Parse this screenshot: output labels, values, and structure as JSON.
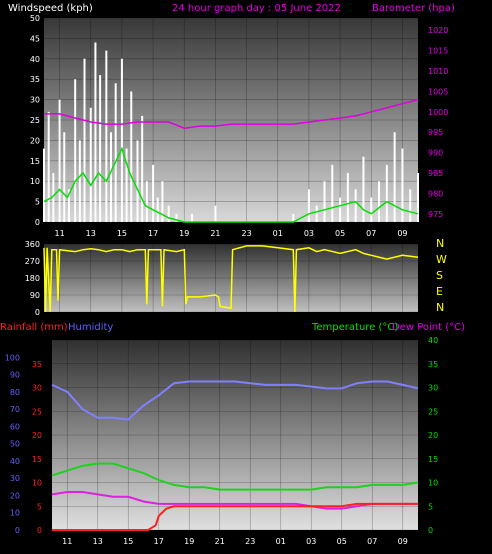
{
  "title": "24 hour graph day : 05 June 2022",
  "x_ticks": [
    "11",
    "13",
    "15",
    "17",
    "19",
    "21",
    "23",
    "01",
    "03",
    "05",
    "07",
    "09"
  ],
  "colors": {
    "wind_gust": "#ffffff",
    "wind_avg": "#00e000",
    "barometer": "#e000e0",
    "direction": "#ffff00",
    "rain": "#ff2020",
    "humidity": "#8080ff",
    "temperature": "#20d020",
    "dewpoint": "#e020e0",
    "rain_label": "#ff2020",
    "humidity_label": "#6060ff",
    "temp_label": "#00e000",
    "dew_label": "#e000e0"
  },
  "chart_data": [
    {
      "type": "line",
      "ylabel": "Windspeed (kph)",
      "ylabel_right": "Barometer (hpa)",
      "y_ticks": [
        0,
        5,
        10,
        15,
        20,
        25,
        30,
        35,
        40,
        45,
        50
      ],
      "y2_ticks": [
        975,
        980,
        985,
        990,
        995,
        1000,
        1005,
        1010,
        1015,
        1020
      ],
      "ylim": [
        0,
        50
      ],
      "y2lim": [
        973,
        1023
      ],
      "x_range": [
        0,
        24
      ],
      "series": [
        {
          "key": "gust",
          "values": [
            [
              0,
              18
            ],
            [
              0.3,
              27
            ],
            [
              0.6,
              12
            ],
            [
              1,
              30
            ],
            [
              1.3,
              22
            ],
            [
              1.6,
              8
            ],
            [
              2,
              35
            ],
            [
              2.3,
              20
            ],
            [
              2.6,
              40
            ],
            [
              3,
              28
            ],
            [
              3.3,
              44
            ],
            [
              3.6,
              36
            ],
            [
              4,
              42
            ],
            [
              4.3,
              22
            ],
            [
              4.6,
              34
            ],
            [
              5,
              40
            ],
            [
              5.3,
              18
            ],
            [
              5.6,
              32
            ],
            [
              6,
              20
            ],
            [
              6.3,
              26
            ],
            [
              6.6,
              10
            ],
            [
              7,
              14
            ],
            [
              7.3,
              6
            ],
            [
              7.6,
              10
            ],
            [
              8,
              4
            ],
            [
              8.5,
              2
            ],
            [
              9,
              0
            ],
            [
              9.5,
              2
            ],
            [
              10,
              0
            ],
            [
              11,
              4
            ],
            [
              12,
              0
            ],
            [
              13,
              0
            ],
            [
              14,
              0
            ],
            [
              15,
              0
            ],
            [
              16,
              2
            ],
            [
              17,
              8
            ],
            [
              17.5,
              4
            ],
            [
              18,
              10
            ],
            [
              18.5,
              14
            ],
            [
              19,
              6
            ],
            [
              19.5,
              12
            ],
            [
              20,
              8
            ],
            [
              20.5,
              16
            ],
            [
              21,
              6
            ],
            [
              21.5,
              10
            ],
            [
              22,
              14
            ],
            [
              22.5,
              22
            ],
            [
              23,
              18
            ],
            [
              23.5,
              8
            ],
            [
              24,
              12
            ]
          ]
        },
        {
          "key": "avg",
          "values": [
            [
              0,
              5
            ],
            [
              0.5,
              6
            ],
            [
              1,
              8
            ],
            [
              1.5,
              6
            ],
            [
              2,
              10
            ],
            [
              2.5,
              12
            ],
            [
              3,
              9
            ],
            [
              3.5,
              12
            ],
            [
              4,
              10
            ],
            [
              4.5,
              14
            ],
            [
              5,
              18
            ],
            [
              5.5,
              12
            ],
            [
              6,
              8
            ],
            [
              6.5,
              4
            ],
            [
              7,
              3
            ],
            [
              7.5,
              2
            ],
            [
              8,
              1
            ],
            [
              9,
              0
            ],
            [
              10,
              0
            ],
            [
              12,
              0
            ],
            [
              14,
              0
            ],
            [
              16,
              0
            ],
            [
              17,
              2
            ],
            [
              18,
              3
            ],
            [
              19,
              4
            ],
            [
              20,
              5
            ],
            [
              20.5,
              3
            ],
            [
              21,
              2
            ],
            [
              22,
              5
            ],
            [
              23,
              3
            ],
            [
              24,
              2
            ]
          ]
        },
        {
          "key": "baro",
          "values": [
            [
              0,
              999.5
            ],
            [
              1,
              999.5
            ],
            [
              2,
              998.5
            ],
            [
              3,
              997.5
            ],
            [
              4,
              997
            ],
            [
              5,
              997
            ],
            [
              6,
              997.5
            ],
            [
              7,
              997.5
            ],
            [
              8,
              997.5
            ],
            [
              9,
              996
            ],
            [
              10,
              996.5
            ],
            [
              11,
              996.5
            ],
            [
              12,
              997
            ],
            [
              13,
              997
            ],
            [
              14,
              997
            ],
            [
              15,
              997
            ],
            [
              16,
              997
            ],
            [
              17,
              997.5
            ],
            [
              18,
              998
            ],
            [
              19,
              998.5
            ],
            [
              20,
              999
            ],
            [
              21,
              1000
            ],
            [
              22,
              1001
            ],
            [
              23,
              1002
            ],
            [
              24,
              1003
            ]
          ]
        }
      ]
    },
    {
      "type": "line",
      "y_ticks": [
        0,
        90,
        180,
        270,
        360
      ],
      "ylim": [
        0,
        360
      ],
      "compass": [
        "N",
        "W",
        "S",
        "E",
        "N"
      ],
      "x_range": [
        0,
        24
      ],
      "series": [
        {
          "key": "dir",
          "values": [
            [
              0,
              340
            ],
            [
              0.1,
              0
            ],
            [
              0.2,
              340
            ],
            [
              0.4,
              0
            ],
            [
              0.5,
              330
            ],
            [
              0.8,
              330
            ],
            [
              0.9,
              60
            ],
            [
              1,
              330
            ],
            [
              2,
              320
            ],
            [
              2.5,
              330
            ],
            [
              3,
              335
            ],
            [
              3.5,
              330
            ],
            [
              4,
              320
            ],
            [
              4.5,
              330
            ],
            [
              5,
              330
            ],
            [
              5.5,
              320
            ],
            [
              6,
              330
            ],
            [
              6.5,
              330
            ],
            [
              6.6,
              40
            ],
            [
              6.7,
              330
            ],
            [
              7.5,
              330
            ],
            [
              7.6,
              30
            ],
            [
              7.7,
              330
            ],
            [
              8.5,
              320
            ],
            [
              9,
              330
            ],
            [
              9.1,
              40
            ],
            [
              9.2,
              80
            ],
            [
              10,
              80
            ],
            [
              11,
              90
            ],
            [
              11.2,
              80
            ],
            [
              11.3,
              30
            ],
            [
              12,
              20
            ],
            [
              12.1,
              330
            ],
            [
              13,
              350
            ],
            [
              14,
              350
            ],
            [
              15,
              340
            ],
            [
              16,
              330
            ],
            [
              16.1,
              0
            ],
            [
              16.2,
              330
            ],
            [
              17,
              340
            ],
            [
              17.5,
              320
            ],
            [
              18,
              330
            ],
            [
              19,
              310
            ],
            [
              20,
              330
            ],
            [
              20.5,
              310
            ],
            [
              21,
              300
            ],
            [
              22,
              280
            ],
            [
              23,
              300
            ],
            [
              24,
              290
            ]
          ]
        }
      ]
    },
    {
      "type": "line",
      "ylabel": "Rainfall (mm)",
      "ylabel_secondary": "Humidity",
      "ylabel_right": "Temperature (°C)",
      "ylabel_right_secondary": "Dew Point (°C)",
      "y_ticks": [
        0,
        5,
        10,
        15,
        20,
        25,
        30,
        35
      ],
      "y_ticks_humidity": [
        0,
        10,
        20,
        30,
        40,
        50,
        60,
        70,
        80,
        90,
        100
      ],
      "y2_ticks": [
        0,
        5,
        10,
        15,
        20,
        25,
        30,
        35,
        40
      ],
      "ylim": [
        0,
        40
      ],
      "x_range": [
        0,
        24
      ],
      "series": [
        {
          "key": "humidity",
          "values": [
            [
              0,
              84
            ],
            [
              1,
              80
            ],
            [
              2,
              70
            ],
            [
              3,
              65
            ],
            [
              4,
              65
            ],
            [
              5,
              64
            ],
            [
              6,
              72
            ],
            [
              7,
              78
            ],
            [
              8,
              85
            ],
            [
              9,
              86
            ],
            [
              10,
              86
            ],
            [
              11,
              86
            ],
            [
              12,
              86
            ],
            [
              13,
              85
            ],
            [
              14,
              84
            ],
            [
              15,
              84
            ],
            [
              16,
              84
            ],
            [
              17,
              83
            ],
            [
              18,
              82
            ],
            [
              19,
              82
            ],
            [
              20,
              85
            ],
            [
              21,
              86
            ],
            [
              22,
              86
            ],
            [
              23,
              84
            ],
            [
              24,
              82
            ]
          ]
        },
        {
          "key": "temp",
          "values": [
            [
              0,
              11.5
            ],
            [
              1,
              12.5
            ],
            [
              2,
              13.5
            ],
            [
              3,
              14
            ],
            [
              4,
              14
            ],
            [
              5,
              13
            ],
            [
              6,
              12
            ],
            [
              7,
              10.5
            ],
            [
              8,
              9.5
            ],
            [
              9,
              9
            ],
            [
              10,
              9
            ],
            [
              11,
              8.5
            ],
            [
              12,
              8.5
            ],
            [
              13,
              8.5
            ],
            [
              14,
              8.5
            ],
            [
              15,
              8.5
            ],
            [
              16,
              8.5
            ],
            [
              17,
              8.5
            ],
            [
              18,
              9
            ],
            [
              19,
              9
            ],
            [
              20,
              9
            ],
            [
              21,
              9.5
            ],
            [
              22,
              9.5
            ],
            [
              23,
              9.5
            ],
            [
              24,
              10
            ]
          ]
        },
        {
          "key": "dew",
          "values": [
            [
              0,
              7.5
            ],
            [
              1,
              8
            ],
            [
              2,
              8
            ],
            [
              3,
              7.5
            ],
            [
              4,
              7
            ],
            [
              5,
              7
            ],
            [
              6,
              6
            ],
            [
              7,
              5.5
            ],
            [
              8,
              5.5
            ],
            [
              9,
              5.5
            ],
            [
              10,
              5.5
            ],
            [
              11,
              5.5
            ],
            [
              12,
              5.5
            ],
            [
              13,
              5.5
            ],
            [
              14,
              5.5
            ],
            [
              15,
              5.5
            ],
            [
              16,
              5.5
            ],
            [
              17,
              5
            ],
            [
              18,
              4.5
            ],
            [
              19,
              4.5
            ],
            [
              20,
              5
            ],
            [
              21,
              5.5
            ],
            [
              22,
              5.5
            ],
            [
              23,
              5.5
            ],
            [
              24,
              5.5
            ]
          ]
        },
        {
          "key": "rain",
          "values": [
            [
              0,
              0
            ],
            [
              2,
              0
            ],
            [
              4,
              0
            ],
            [
              6.3,
              0
            ],
            [
              6.8,
              1
            ],
            [
              7,
              3
            ],
            [
              7.5,
              4.5
            ],
            [
              8,
              5
            ],
            [
              9,
              5
            ],
            [
              10,
              5
            ],
            [
              11,
              5
            ],
            [
              12,
              5
            ],
            [
              13,
              5
            ],
            [
              14,
              5
            ],
            [
              15,
              5
            ],
            [
              16,
              5
            ],
            [
              17,
              5
            ],
            [
              18,
              5
            ],
            [
              19,
              5
            ],
            [
              20,
              5.5
            ],
            [
              21,
              5.5
            ],
            [
              22,
              5.5
            ],
            [
              23,
              5.5
            ],
            [
              24,
              5.5
            ]
          ]
        }
      ]
    }
  ]
}
